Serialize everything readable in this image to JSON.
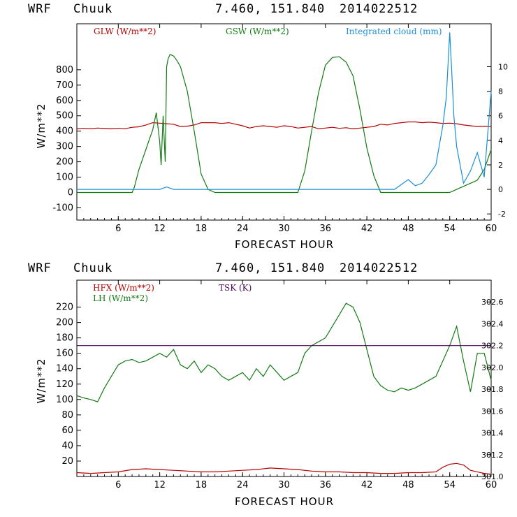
{
  "colors": {
    "red": "#b40000",
    "green": "#137a13",
    "blue": "#1a8fd6",
    "purple": "#4a0a5a",
    "axis": "#000000"
  },
  "chart_data": [
    {
      "type": "line",
      "header": {
        "model": "WRF",
        "station": "Chuuk",
        "coords": "7.460, 151.840",
        "date": "2014022512"
      },
      "xlabel": "FORECAST HOUR",
      "ylabel": "W/m**2",
      "xlim": [
        0,
        60
      ],
      "ylim": [
        -180,
        1100
      ],
      "y2lim": [
        -2.5,
        13.5
      ],
      "x_ticks": [
        6,
        12,
        18,
        24,
        30,
        36,
        42,
        48,
        54,
        60
      ],
      "y_ticks": [
        -100,
        0,
        100,
        200,
        300,
        400,
        500,
        600,
        700,
        800
      ],
      "y2_ticks": [
        -2,
        0,
        2,
        4,
        6,
        8,
        10
      ],
      "series": [
        {
          "name": "GLW (W/m**2)",
          "color": "#b40000",
          "axis": "left",
          "x": [
            0,
            1,
            2,
            3,
            4,
            5,
            6,
            7,
            8,
            9,
            10,
            11,
            12,
            13,
            14,
            15,
            16,
            17,
            18,
            19,
            20,
            21,
            22,
            23,
            24,
            25,
            26,
            27,
            28,
            29,
            30,
            31,
            32,
            33,
            34,
            35,
            36,
            37,
            38,
            39,
            40,
            41,
            42,
            43,
            44,
            45,
            46,
            47,
            48,
            49,
            50,
            51,
            52,
            53,
            54,
            55,
            56,
            57,
            58,
            59,
            60
          ],
          "y": [
            415,
            418,
            415,
            420,
            417,
            415,
            418,
            416,
            425,
            428,
            440,
            455,
            452,
            448,
            445,
            430,
            432,
            440,
            455,
            455,
            455,
            450,
            455,
            445,
            435,
            420,
            430,
            435,
            430,
            425,
            435,
            430,
            420,
            425,
            430,
            415,
            420,
            425,
            418,
            422,
            415,
            420,
            425,
            430,
            445,
            440,
            450,
            455,
            460,
            460,
            455,
            458,
            455,
            450,
            452,
            448,
            440,
            435,
            430,
            432,
            430
          ]
        },
        {
          "name": "GSW (W/m**2)",
          "color": "#137a13",
          "axis": "left",
          "x": [
            0,
            8,
            8.3,
            9,
            10,
            11,
            11.5,
            12,
            12.2,
            12.5,
            12.8,
            13,
            13.2,
            13.5,
            14,
            14.5,
            15,
            16,
            17,
            18,
            19,
            20,
            32,
            33,
            34,
            35,
            36,
            37,
            38,
            39,
            40,
            41,
            42,
            43,
            44,
            54,
            55,
            56,
            57,
            58,
            59,
            60
          ],
          "y": [
            0,
            0,
            30,
            150,
            280,
            410,
            520,
            330,
            180,
            500,
            200,
            820,
            870,
            900,
            890,
            860,
            820,
            660,
            400,
            120,
            20,
            0,
            0,
            140,
            400,
            650,
            830,
            880,
            885,
            850,
            760,
            540,
            290,
            110,
            0,
            0,
            20,
            40,
            60,
            80,
            150,
            280
          ]
        },
        {
          "name": "Integrated cloud (mm)",
          "color": "#1a8fd6",
          "axis": "right",
          "x": [
            0,
            12,
            13,
            14,
            15,
            46,
            47,
            48,
            49,
            50,
            51,
            52,
            53,
            53.5,
            54,
            54.3,
            54.6,
            55,
            56,
            57,
            58,
            59,
            60
          ],
          "y": [
            0,
            0,
            0.2,
            0,
            0,
            0,
            0.4,
            0.8,
            0.3,
            0.5,
            1.2,
            2.0,
            5.2,
            7.5,
            12.8,
            9.5,
            6.0,
            3.5,
            0.5,
            1.5,
            3.0,
            1.0,
            8.0
          ]
        }
      ]
    },
    {
      "type": "line",
      "header": {
        "model": "WRF",
        "station": "Chuuk",
        "coords": "7.460, 151.840",
        "date": "2014022512"
      },
      "xlabel": "FORECAST HOUR",
      "ylabel": "W/m**2",
      "xlim": [
        0,
        60
      ],
      "ylim": [
        0,
        255
      ],
      "y2lim": [
        301.0,
        302.8
      ],
      "x_ticks": [
        6,
        12,
        18,
        24,
        30,
        36,
        42,
        48,
        54,
        60
      ],
      "y_ticks": [
        20,
        40,
        60,
        80,
        100,
        120,
        140,
        160,
        180,
        200,
        220
      ],
      "y2_ticks": [
        301.0,
        301.2,
        301.4,
        301.6,
        301.8,
        302.0,
        302.2,
        302.4,
        302.6
      ],
      "series": [
        {
          "name": "HFX (W/m**2)",
          "color": "#b40000",
          "axis": "left",
          "x": [
            0,
            2,
            4,
            6,
            8,
            10,
            12,
            14,
            16,
            18,
            20,
            22,
            24,
            26,
            28,
            30,
            32,
            34,
            36,
            38,
            40,
            42,
            44,
            46,
            48,
            50,
            52,
            53,
            54,
            55,
            56,
            57,
            58,
            59,
            60
          ],
          "y": [
            5,
            4,
            5,
            6,
            9,
            10,
            9,
            8,
            7,
            6,
            6,
            7,
            8,
            9,
            11,
            10,
            9,
            7,
            6,
            6,
            5,
            5,
            4,
            4,
            5,
            5,
            6,
            12,
            16,
            17,
            15,
            8,
            6,
            4,
            3
          ]
        },
        {
          "name": "LH (W/m**2)",
          "color": "#137a13",
          "axis": "left",
          "x": [
            0,
            1,
            2,
            3,
            4,
            5,
            6,
            7,
            8,
            9,
            10,
            11,
            12,
            13,
            14,
            15,
            16,
            17,
            18,
            19,
            20,
            21,
            22,
            23,
            24,
            25,
            26,
            27,
            28,
            29,
            30,
            31,
            32,
            33,
            34,
            35,
            36,
            37,
            38,
            39,
            40,
            41,
            42,
            43,
            44,
            45,
            46,
            47,
            48,
            49,
            50,
            51,
            52,
            53,
            54,
            55,
            56,
            57,
            58,
            59,
            60
          ],
          "y": [
            105,
            102,
            100,
            97,
            115,
            130,
            145,
            150,
            152,
            148,
            150,
            155,
            160,
            155,
            165,
            145,
            140,
            150,
            135,
            145,
            140,
            130,
            125,
            130,
            135,
            125,
            140,
            130,
            145,
            135,
            125,
            130,
            135,
            160,
            170,
            175,
            180,
            195,
            210,
            225,
            220,
            200,
            165,
            130,
            118,
            112,
            110,
            115,
            112,
            115,
            120,
            125,
            130,
            150,
            170,
            195,
            150,
            110,
            160,
            160,
            125
          ]
        },
        {
          "name": "TSK (K)",
          "color": "#4a0a5a",
          "axis": "right",
          "x": [
            0,
            60
          ],
          "y": [
            302.2,
            302.2
          ]
        }
      ]
    }
  ]
}
